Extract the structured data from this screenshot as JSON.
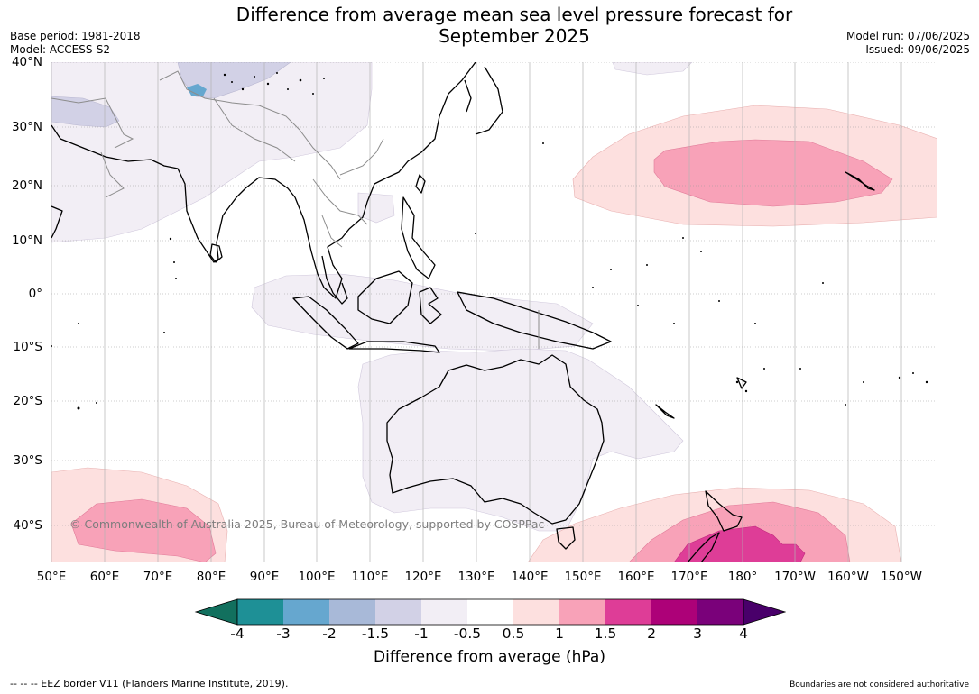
{
  "title": "Difference from average mean sea level pressure forecast for September 2025",
  "title_line1": "Difference from average mean sea level pressure forecast for",
  "title_line2": "September 2025",
  "meta_left": {
    "base_period": "Base period: 1981-2018",
    "model": "Model: ACCESS-S2"
  },
  "meta_right": {
    "model_run": "Model run: 07/06/2025",
    "issued": "Issued: 09/06/2025"
  },
  "lat_labels": [
    "40°N",
    "30°N",
    "20°N",
    "10°N",
    "0°",
    "10°S",
    "20°S",
    "30°S",
    "40°S"
  ],
  "lon_labels": [
    "50°E",
    "60°E",
    "70°E",
    "80°E",
    "90°E",
    "100°E",
    "110°E",
    "120°E",
    "130°E",
    "140°E",
    "150°E",
    "160°E",
    "170°E",
    "180°",
    "170°W",
    "160°W",
    "150°W"
  ],
  "copyright": "© Commonwealth of Australia 2025, Bureau of Meteorology, supported by COSPPac",
  "colorbar": {
    "labels": [
      "-4",
      "-3",
      "-2",
      "-1.5",
      "-1",
      "-0.5",
      "0.5",
      "1",
      "1.5",
      "2",
      "3",
      "4"
    ],
    "colors": [
      "#12705e",
      "#1e9096",
      "#66a7cf",
      "#a8b9d8",
      "#d2d1e6",
      "#f2eef5",
      "#ffffff",
      "#fde0df",
      "#f8a2b8",
      "#de3d97",
      "#ad0178",
      "#7a017a",
      "#49006a"
    ],
    "title": "Difference from average (hPa)"
  },
  "footer_left": "--  --  -- EEZ border V11 (Flanders Marine Institute, 2019).",
  "footer_right": "Boundaries are not considered authoritative"
}
